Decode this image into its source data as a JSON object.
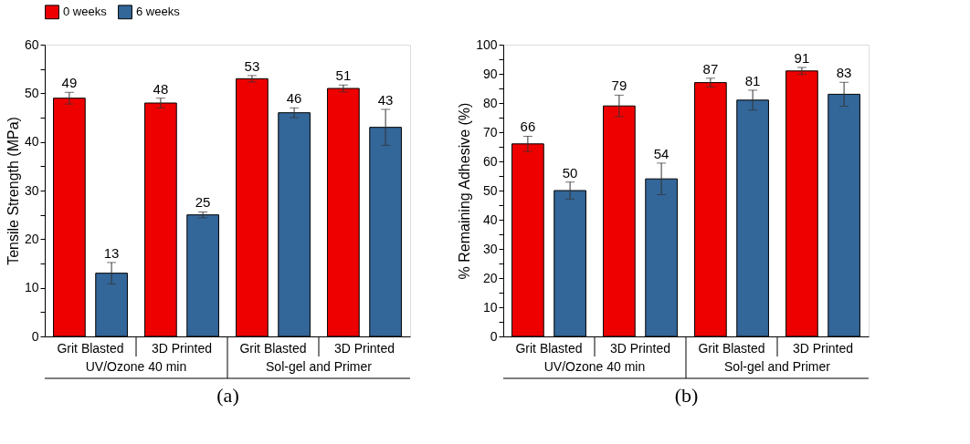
{
  "chart_data": [
    {
      "type": "bar",
      "xlabel": "(a)",
      "ylabel": "Tensile Strength (MPa)",
      "categories": [
        "Grit Blasted",
        "3D Printed",
        "Grit Blasted",
        "3D Printed"
      ],
      "series": [
        {
          "name": "0 weeks",
          "color": "#ee0000",
          "values": [
            49,
            48,
            53,
            51
          ],
          "errors": [
            1.2,
            1.0,
            0.65,
            0.7
          ]
        },
        {
          "name": "6 weeks",
          "color": "#336699",
          "values": [
            13,
            25,
            46,
            43
          ],
          "errors": [
            2.2,
            0.6,
            1.0,
            3.7
          ]
        }
      ],
      "ylim": [
        0,
        60
      ],
      "yticks": [
        0,
        {
          "value": 5,
          "label": null
        },
        10,
        {
          "value": 15,
          "label": null
        },
        20,
        {
          "value": 25,
          "label": null
        },
        30,
        {
          "value": 35,
          "label": null
        },
        40,
        {
          "value": 45,
          "label": null
        },
        50,
        {
          "value": 55,
          "label": null
        },
        60
      ],
      "annotations": [
        "UV/Ozone 40 min",
        "Sol-gel and Primer"
      ],
      "data_labels": true,
      "legend": "top",
      "grid": false
    },
    {
      "type": "bar",
      "xlabel": "(b)",
      "ylabel": "% Remaining Adhesive (%)",
      "categories": [
        "Grit Blasted",
        "3D Printed",
        "Grit Blasted",
        "3D Printed"
      ],
      "series": [
        {
          "name": "0 weeks",
          "color": "#ee0000",
          "values": [
            66,
            79,
            87,
            91
          ],
          "errors": [
            2.6,
            3.7,
            1.5,
            1.2
          ]
        },
        {
          "name": "6 weeks",
          "color": "#336699",
          "values": [
            50,
            54,
            81,
            83
          ],
          "errors": [
            2.9,
            5.4,
            3.4,
            4.1
          ]
        }
      ],
      "ylim": [
        0,
        100
      ],
      "yticks": [
        0,
        {
          "value": 5,
          "label": null
        },
        10,
        {
          "value": 15,
          "label": null
        },
        20,
        {
          "value": 25,
          "label": null
        },
        30,
        {
          "value": 35,
          "label": null
        },
        40,
        {
          "value": 45,
          "label": null
        },
        50,
        {
          "value": 55,
          "label": null
        },
        60,
        {
          "value": 65,
          "label": null
        },
        70,
        {
          "value": 75,
          "label": null
        },
        80,
        {
          "value": 85,
          "label": null
        },
        90,
        {
          "value": 95,
          "label": null
        },
        100
      ],
      "annotations": [
        "UV/Ozone 40 min",
        "Sol-gel and Primer"
      ],
      "data_labels": true,
      "legend": "top",
      "grid": false
    }
  ]
}
